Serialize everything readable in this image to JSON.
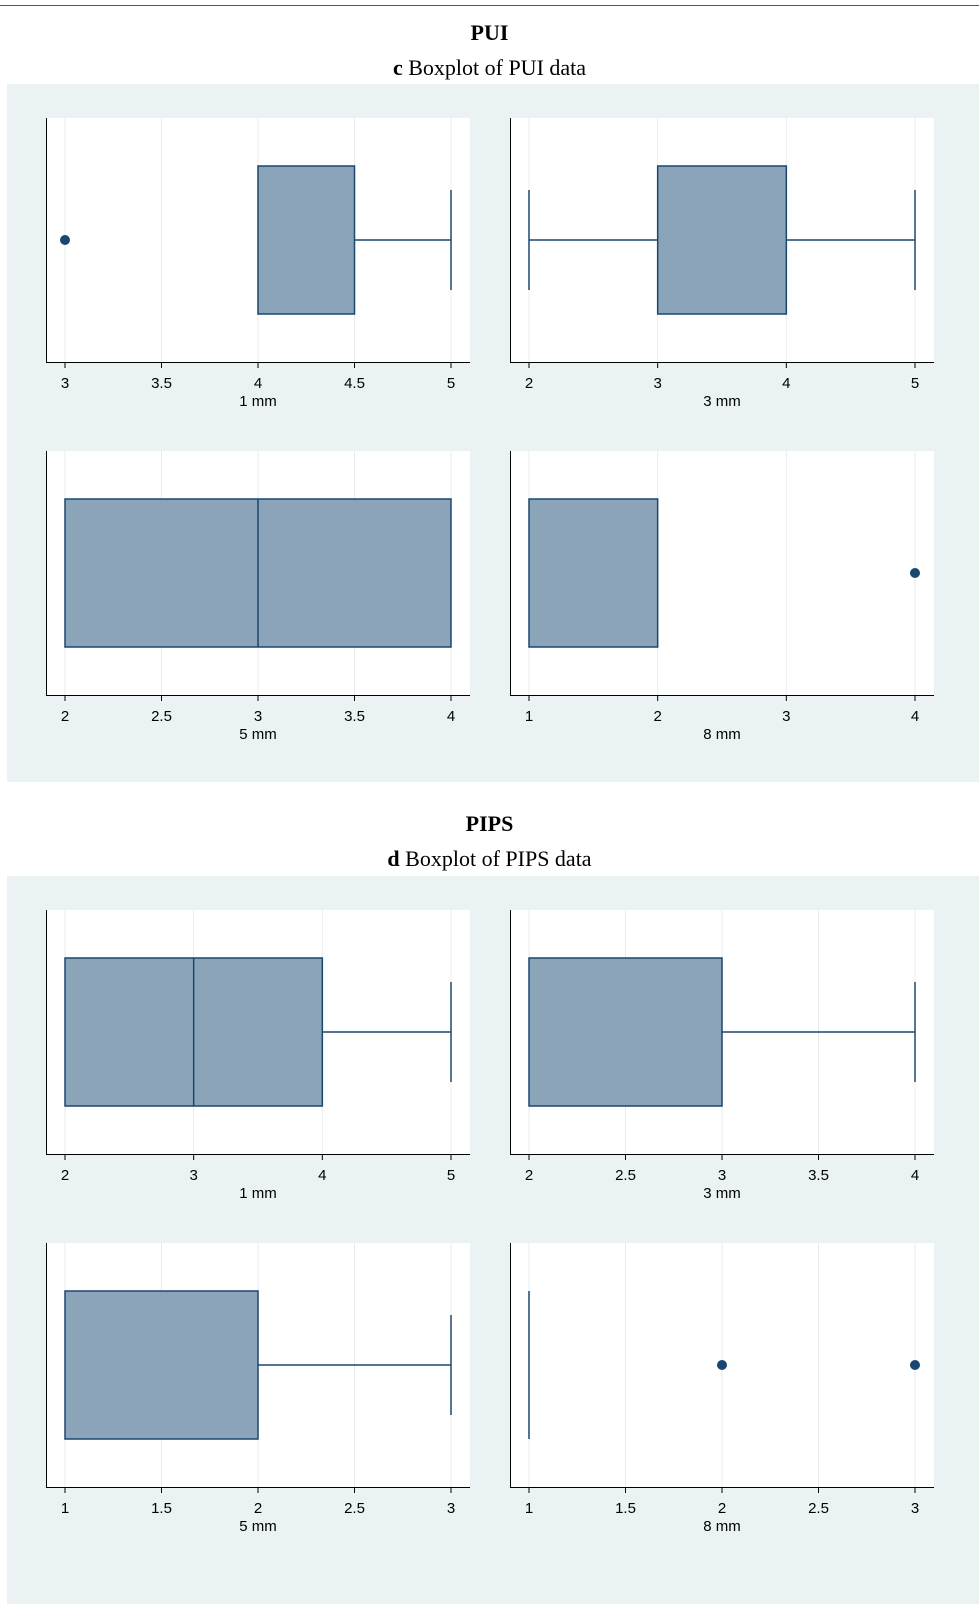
{
  "sections": [
    {
      "title": "PUI",
      "caption_letter": "c",
      "caption_text": " Boxplot of PUI data"
    },
    {
      "title": "PIPS",
      "caption_letter": "d",
      "caption_text": " Boxplot of PIPS data"
    }
  ],
  "colors": {
    "panel_background": "#eaf2f3",
    "plot_background": "#ffffff",
    "box_fill": "#8ca4b9",
    "box_stroke": "#1a476f",
    "grid": "#e6ecee"
  },
  "chart_data": [
    {
      "type": "boxplot",
      "section": "PUI",
      "xlabel": "1 mm",
      "ticks": [
        3,
        3.5,
        4,
        4.5,
        5
      ],
      "xlim": [
        3,
        5
      ],
      "box": {
        "whisker_low": 4,
        "q1": 4,
        "median": 4,
        "q3": 4.5,
        "whisker_high": 5
      },
      "outliers": [
        3
      ],
      "grid": true
    },
    {
      "type": "boxplot",
      "section": "PUI",
      "xlabel": "3 mm",
      "ticks": [
        2,
        3,
        4,
        5
      ],
      "xlim": [
        2,
        5
      ],
      "box": {
        "whisker_low": 2,
        "q1": 3,
        "median": 3,
        "q3": 4,
        "whisker_high": 5
      },
      "outliers": [],
      "grid": true
    },
    {
      "type": "boxplot",
      "section": "PUI",
      "xlabel": "5 mm",
      "ticks": [
        2,
        2.5,
        3,
        3.5,
        4
      ],
      "xlim": [
        2,
        4
      ],
      "box": {
        "whisker_low": 2,
        "q1": 2,
        "median": 3,
        "q3": 4,
        "whisker_high": 4
      },
      "outliers": [],
      "grid": true
    },
    {
      "type": "boxplot",
      "section": "PUI",
      "xlabel": "8 mm",
      "ticks": [
        1,
        2,
        3,
        4
      ],
      "xlim": [
        1,
        4
      ],
      "box": {
        "whisker_low": 1,
        "q1": 1,
        "median": 1,
        "q3": 2,
        "whisker_high": 2
      },
      "outliers": [
        4
      ],
      "grid": true
    },
    {
      "type": "boxplot",
      "section": "PIPS",
      "xlabel": "1 mm",
      "ticks": [
        2,
        3,
        4,
        5
      ],
      "xlim": [
        2,
        5
      ],
      "box": {
        "whisker_low": 2,
        "q1": 2,
        "median": 3,
        "q3": 4,
        "whisker_high": 5
      },
      "outliers": [],
      "grid": true
    },
    {
      "type": "boxplot",
      "section": "PIPS",
      "xlabel": "3 mm",
      "ticks": [
        2,
        2.5,
        3,
        3.5,
        4
      ],
      "xlim": [
        2,
        4
      ],
      "box": {
        "whisker_low": 2,
        "q1": 2,
        "median": 2,
        "q3": 3,
        "whisker_high": 4
      },
      "outliers": [],
      "grid": true
    },
    {
      "type": "boxplot",
      "section": "PIPS",
      "xlabel": "5 mm",
      "ticks": [
        1,
        1.5,
        2,
        2.5,
        3
      ],
      "xlim": [
        1,
        3
      ],
      "box": {
        "whisker_low": 1,
        "q1": 1,
        "median": 1,
        "q3": 2,
        "whisker_high": 3
      },
      "outliers": [],
      "grid": true
    },
    {
      "type": "boxplot",
      "section": "PIPS",
      "xlabel": "8 mm",
      "ticks": [
        1,
        1.5,
        2,
        2.5,
        3
      ],
      "xlim": [
        1,
        3
      ],
      "box": {
        "whisker_low": 1,
        "q1": 1,
        "median": 1,
        "q3": 1,
        "whisker_high": 1
      },
      "outliers": [
        2,
        3
      ],
      "grid": true
    }
  ]
}
